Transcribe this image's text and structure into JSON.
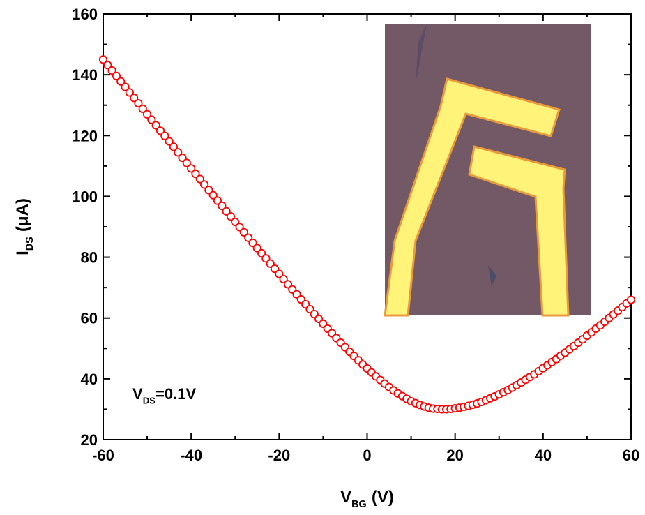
{
  "chart_data": {
    "type": "scatter",
    "xlabel": {
      "main": "V",
      "sub": "BG",
      "rest": "(V)"
    },
    "ylabel": {
      "main": "I",
      "sub": "DS",
      "rest": "(μA)"
    },
    "annotation": {
      "main": "V",
      "sub": "DS",
      "rest": "=0.1V"
    },
    "xlim": [
      -60,
      60
    ],
    "ylim": [
      20,
      160
    ],
    "xticks": [
      -60,
      -40,
      -20,
      0,
      20,
      40,
      60
    ],
    "yticks": [
      20,
      40,
      60,
      80,
      100,
      120,
      140,
      160
    ],
    "x": [
      -60,
      -59,
      -58,
      -57,
      -56,
      -55,
      -54,
      -53,
      -52,
      -51,
      -50,
      -49,
      -48,
      -47,
      -46,
      -45,
      -44,
      -43,
      -42,
      -41,
      -40,
      -39,
      -38,
      -37,
      -36,
      -35,
      -34,
      -33,
      -32,
      -31,
      -30,
      -29,
      -28,
      -27,
      -26,
      -25,
      -24,
      -23,
      -22,
      -21,
      -20,
      -19,
      -18,
      -17,
      -16,
      -15,
      -14,
      -13,
      -12,
      -11,
      -10,
      -9,
      -8,
      -7,
      -6,
      -5,
      -4,
      -3,
      -2,
      -1,
      0,
      1,
      2,
      3,
      4,
      5,
      6,
      7,
      8,
      9,
      10,
      11,
      12,
      13,
      14,
      15,
      16,
      17,
      18,
      19,
      20,
      21,
      22,
      23,
      24,
      25,
      26,
      27,
      28,
      29,
      30,
      31,
      32,
      33,
      34,
      35,
      36,
      37,
      38,
      39,
      40,
      41,
      42,
      43,
      44,
      45,
      46,
      47,
      48,
      49,
      50,
      51,
      52,
      53,
      54,
      55,
      56,
      57,
      58,
      59,
      60
    ],
    "series": [
      {
        "color": "#ff0000",
        "values": [
          145.0,
          143.2,
          141.4,
          139.6,
          137.8,
          136.0,
          134.2,
          132.4,
          130.6,
          128.8,
          127.0,
          125.2,
          123.4,
          121.6,
          119.9,
          118.1,
          116.3,
          114.5,
          112.7,
          111.0,
          109.2,
          107.4,
          105.7,
          103.9,
          102.1,
          100.4,
          98.6,
          96.9,
          95.1,
          93.4,
          91.6,
          89.9,
          88.2,
          86.4,
          84.7,
          83.0,
          81.3,
          79.6,
          77.9,
          76.2,
          74.5,
          72.8,
          71.1,
          69.4,
          67.8,
          66.1,
          64.5,
          62.9,
          61.3,
          59.7,
          58.1,
          56.5,
          55.0,
          53.4,
          51.9,
          50.4,
          48.9,
          47.5,
          46.1,
          44.7,
          43.4,
          42.1,
          40.8,
          39.6,
          38.4,
          37.3,
          36.2,
          35.2,
          34.3,
          33.4,
          32.6,
          32.0,
          31.4,
          30.9,
          30.5,
          30.2,
          30.1,
          30.0,
          30.0,
          30.1,
          30.3,
          30.5,
          30.8,
          31.1,
          31.5,
          31.9,
          32.4,
          33.0,
          33.6,
          34.2,
          34.9,
          35.6,
          36.3,
          37.1,
          37.9,
          38.8,
          39.7,
          40.6,
          41.5,
          42.5,
          43.5,
          44.5,
          45.5,
          46.5,
          47.6,
          48.6,
          49.7,
          50.8,
          51.9,
          53.0,
          54.2,
          55.3,
          56.5,
          57.6,
          58.8,
          60.0,
          61.2,
          62.4,
          63.6,
          64.8,
          66.0
        ]
      }
    ]
  }
}
